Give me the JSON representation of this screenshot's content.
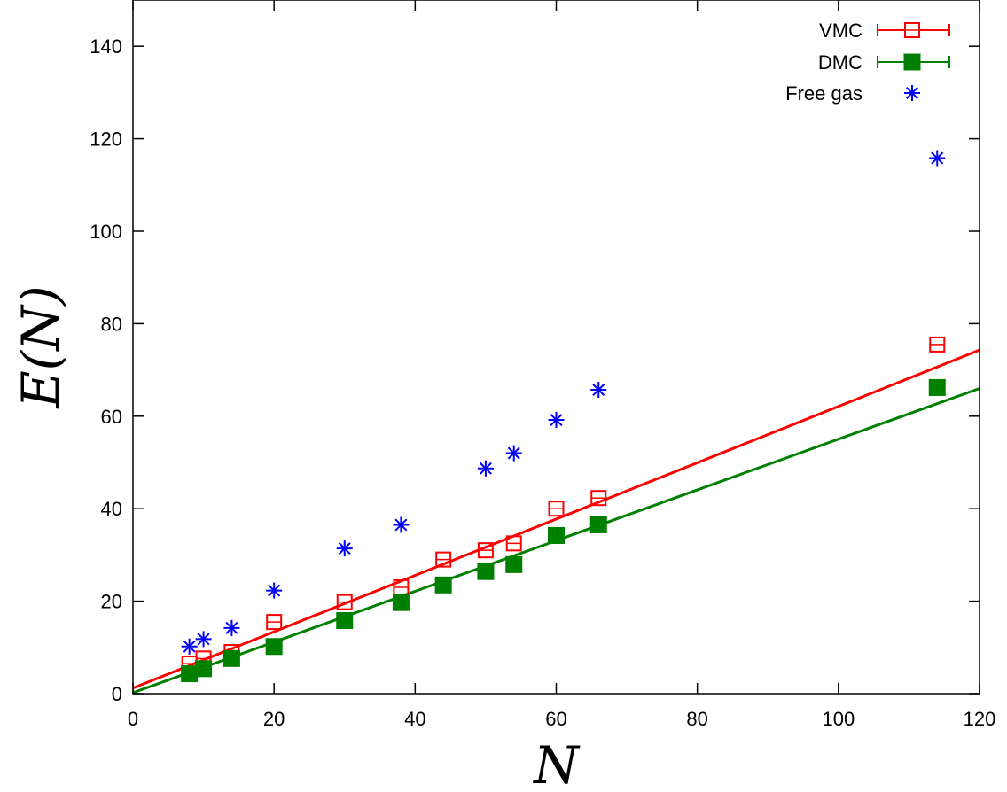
{
  "chart_data": {
    "type": "scatter",
    "title": "",
    "xlabel": "N",
    "ylabel": "E(N)",
    "xlim": [
      0,
      120
    ],
    "ylim": [
      0,
      150
    ],
    "xticks": [
      0,
      20,
      40,
      60,
      80,
      100,
      120
    ],
    "yticks": [
      0,
      20,
      40,
      60,
      80,
      100,
      120,
      140
    ],
    "grid": false,
    "legend_position": "top-right",
    "series": [
      {
        "name": "VMC",
        "color": "#ff0000",
        "marker": "open-square-errorbar",
        "x": [
          8,
          10,
          14,
          20,
          30,
          38,
          44,
          50,
          54,
          60,
          66,
          114
        ],
        "y": [
          6.5,
          7.6,
          9.0,
          15.5,
          19.8,
          23.0,
          29.0,
          31.0,
          32.5,
          40.0,
          42.3,
          75.5
        ]
      },
      {
        "name": "DMC",
        "color": "#008000",
        "marker": "filled-square-errorbar",
        "x": [
          8,
          10,
          14,
          20,
          30,
          38,
          44,
          50,
          54,
          60,
          66,
          114
        ],
        "y": [
          4.3,
          5.4,
          7.6,
          10.2,
          15.8,
          19.7,
          23.5,
          26.4,
          27.9,
          34.2,
          36.5,
          66.2
        ]
      },
      {
        "name": "Free gas",
        "color": "#0000ff",
        "marker": "asterisk",
        "x": [
          8,
          10,
          14,
          20,
          30,
          38,
          50,
          54,
          60,
          66,
          114
        ],
        "y": [
          10.2,
          11.8,
          14.2,
          22.3,
          31.4,
          36.5,
          48.7,
          52.0,
          59.2,
          65.7,
          115.8
        ]
      }
    ],
    "fit_lines": [
      {
        "series": "VMC",
        "color": "#ff0000",
        "x": [
          0,
          120
        ],
        "y": [
          1.2,
          74.3
        ]
      },
      {
        "series": "DMC",
        "color": "#008000",
        "x": [
          0,
          120
        ],
        "y": [
          0.2,
          66.0
        ]
      }
    ]
  }
}
